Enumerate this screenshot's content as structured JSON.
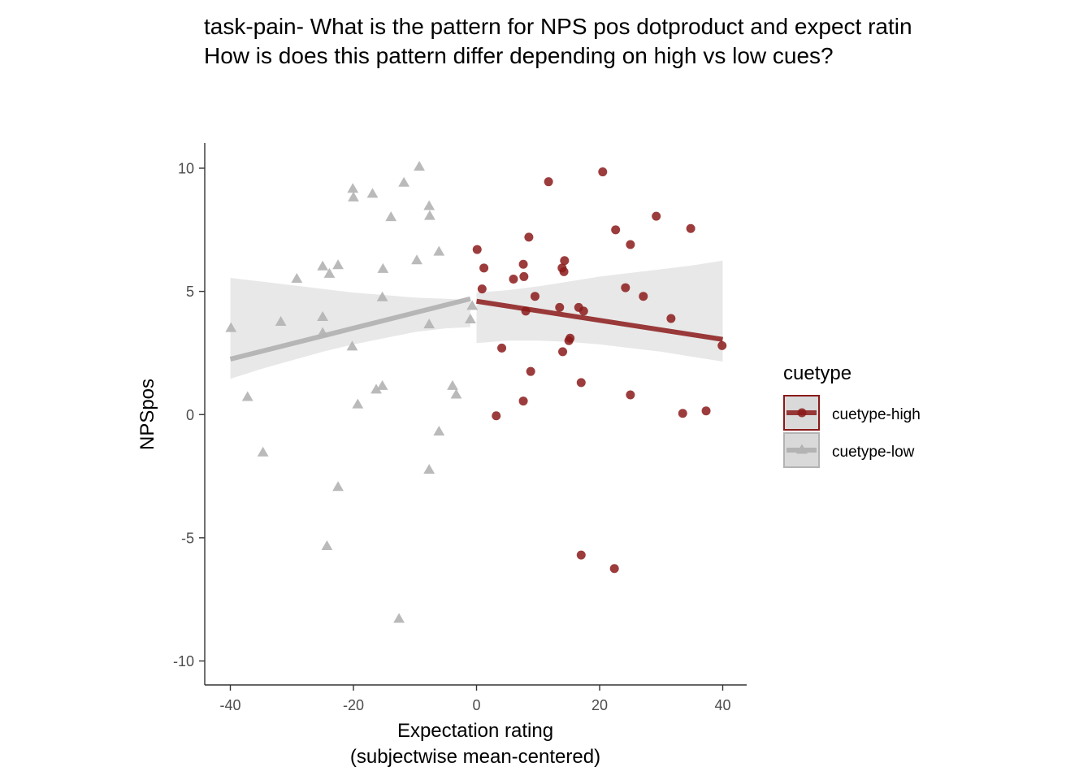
{
  "chart_data": {
    "type": "scatter",
    "title_lines": [
      "task-pain- What is the pattern for NPS pos dotproduct and expect ratin",
      "How is does this pattern differ depending on high vs low cues?"
    ],
    "xlabel_lines": [
      "Expectation rating",
      "(subjectwise mean-centered)"
    ],
    "ylabel": "NPSpos",
    "xlim": [
      -44,
      44
    ],
    "ylim": [
      -11,
      11
    ],
    "x_ticks": [
      -40,
      -20,
      0,
      20,
      40
    ],
    "x_tick_labels": [
      "-40",
      "-20",
      "0",
      "20",
      "40"
    ],
    "y_ticks": [
      10,
      5,
      0,
      -5,
      -10
    ],
    "y_tick_labels": [
      "10",
      "5",
      "0",
      "-5",
      "-10"
    ],
    "grid": false,
    "legend": {
      "title": "cuetype",
      "position": "right"
    },
    "series": [
      {
        "name": "cuetype-high",
        "color": "#8B1A1A",
        "marker": "circle",
        "points": [
          [
            0.1,
            6.7
          ],
          [
            1.2,
            5.95
          ],
          [
            0.9,
            5.1
          ],
          [
            3.2,
            -0.05
          ],
          [
            4.1,
            2.7
          ],
          [
            6.0,
            5.5
          ],
          [
            7.6,
            6.1
          ],
          [
            7.7,
            5.6
          ],
          [
            8.0,
            4.2
          ],
          [
            7.6,
            0.55
          ],
          [
            8.5,
            7.2
          ],
          [
            8.8,
            1.75
          ],
          [
            9.5,
            4.8
          ],
          [
            11.7,
            9.45
          ],
          [
            13.5,
            4.35
          ],
          [
            13.9,
            5.95
          ],
          [
            14.3,
            6.25
          ],
          [
            14.2,
            5.8
          ],
          [
            14.0,
            2.55
          ],
          [
            15.2,
            3.1
          ],
          [
            15.0,
            3.0
          ],
          [
            16.6,
            4.35
          ],
          [
            17.0,
            1.3
          ],
          [
            17.4,
            4.2
          ],
          [
            17.0,
            -5.7
          ],
          [
            20.5,
            9.85
          ],
          [
            22.6,
            7.5
          ],
          [
            22.4,
            -6.25
          ],
          [
            24.2,
            5.15
          ],
          [
            25.0,
            6.9
          ],
          [
            25.0,
            0.8
          ],
          [
            27.1,
            4.8
          ],
          [
            29.2,
            8.05
          ],
          [
            31.6,
            3.9
          ],
          [
            33.5,
            0.05
          ],
          [
            34.8,
            7.55
          ],
          [
            37.3,
            0.15
          ],
          [
            39.9,
            2.8
          ]
        ],
        "fit": {
          "x": [
            0,
            40
          ],
          "y": [
            4.6,
            3.05
          ]
        },
        "band": {
          "x": [
            0,
            5,
            10,
            15,
            20,
            25,
            30,
            35,
            40
          ],
          "lower": [
            2.9,
            3.0,
            3.0,
            2.95,
            2.85,
            2.7,
            2.55,
            2.35,
            2.15
          ],
          "upper": [
            4.95,
            5.05,
            5.2,
            5.4,
            5.6,
            5.75,
            5.9,
            6.05,
            6.25
          ]
        }
      },
      {
        "name": "cuetype-low",
        "color": "#B3B3B3",
        "marker": "triangle",
        "points": [
          [
            -39.9,
            3.5
          ],
          [
            -37.2,
            0.7
          ],
          [
            -34.7,
            -1.55
          ],
          [
            -31.8,
            3.75
          ],
          [
            -29.2,
            5.5
          ],
          [
            -25.0,
            6.0
          ],
          [
            -25.0,
            3.95
          ],
          [
            -25.0,
            3.3
          ],
          [
            -24.3,
            -5.35
          ],
          [
            -23.9,
            5.7
          ],
          [
            -22.5,
            6.05
          ],
          [
            -22.5,
            -2.95
          ],
          [
            -20.2,
            2.75
          ],
          [
            -20.1,
            9.15
          ],
          [
            -20.0,
            8.8
          ],
          [
            -19.3,
            0.4
          ],
          [
            -16.9,
            8.95
          ],
          [
            -16.3,
            1.0
          ],
          [
            -15.3,
            4.75
          ],
          [
            -15.3,
            1.15
          ],
          [
            -15.2,
            5.9
          ],
          [
            -13.9,
            8.0
          ],
          [
            -12.6,
            -8.3
          ],
          [
            -11.8,
            9.4
          ],
          [
            -9.7,
            6.25
          ],
          [
            -9.3,
            10.05
          ],
          [
            -7.7,
            8.45
          ],
          [
            -7.6,
            8.05
          ],
          [
            -7.7,
            3.65
          ],
          [
            -7.7,
            -2.25
          ],
          [
            -6.1,
            6.6
          ],
          [
            -6.1,
            -0.7
          ],
          [
            -3.9,
            1.15
          ],
          [
            -3.3,
            0.8
          ],
          [
            -1.0,
            3.85
          ],
          [
            -0.7,
            4.4
          ]
        ],
        "fit": {
          "x": [
            -40,
            -1
          ],
          "y": [
            2.25,
            4.7
          ]
        },
        "band": {
          "x": [
            -40,
            -35,
            -30,
            -25,
            -20,
            -15,
            -10,
            -5,
            -1
          ],
          "lower": [
            1.45,
            1.85,
            2.2,
            2.55,
            2.85,
            3.1,
            3.35,
            3.5,
            3.55
          ],
          "upper": [
            5.55,
            5.4,
            5.25,
            5.1,
            4.95,
            4.85,
            4.75,
            4.7,
            4.65
          ]
        }
      }
    ]
  }
}
